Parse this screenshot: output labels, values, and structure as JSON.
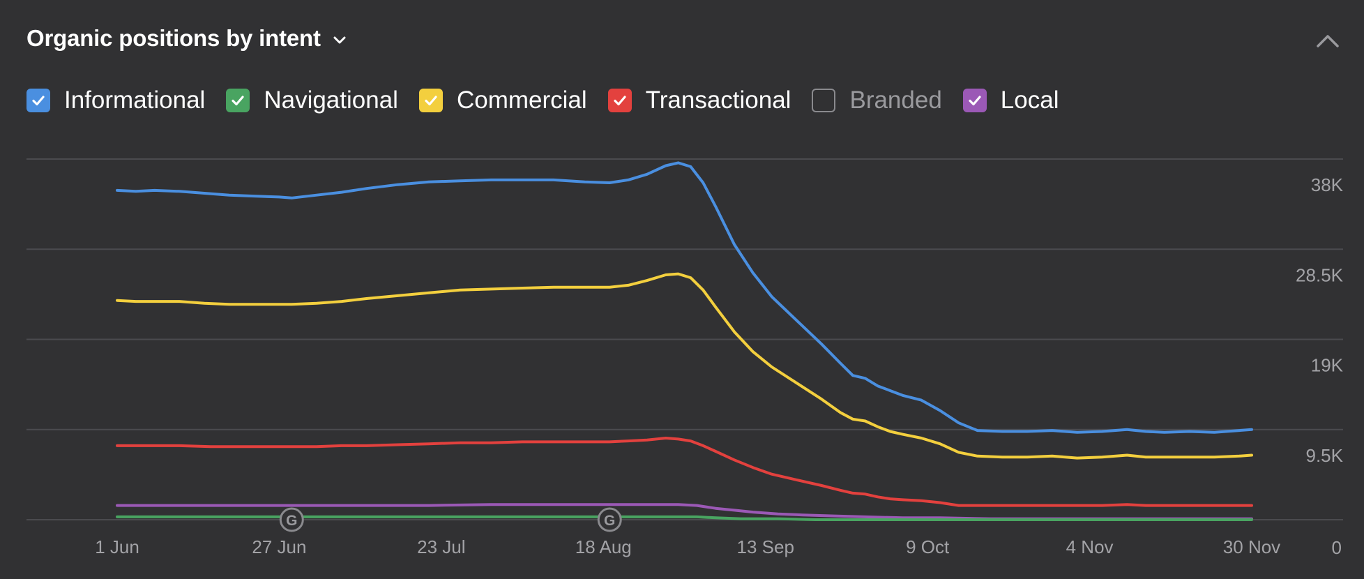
{
  "widget": {
    "title": "Organic positions by intent"
  },
  "legend": [
    {
      "label": "Informational",
      "color": "#4a8fe0",
      "checked": true
    },
    {
      "label": "Navigational",
      "color": "#49a461",
      "checked": true
    },
    {
      "label": "Commercial",
      "color": "#f3cf3e",
      "checked": true
    },
    {
      "label": "Transactional",
      "color": "#e3413e",
      "checked": true
    },
    {
      "label": "Branded",
      "color": "#8a8a8e",
      "checked": false
    },
    {
      "label": "Local",
      "color": "#9b59b6",
      "checked": true
    }
  ],
  "chart_data": {
    "type": "line",
    "title": "Organic positions by intent",
    "x_ticks": [
      "1 Jun",
      "27 Jun",
      "23 Jul",
      "18 Aug",
      "13 Sep",
      "9 Oct",
      "4 Nov",
      "30 Nov"
    ],
    "x_domain": [
      0,
      182
    ],
    "y_ticks": [
      {
        "value": 38000,
        "label": "38K"
      },
      {
        "value": 28500,
        "label": "28.5K"
      },
      {
        "value": 19000,
        "label": "19K"
      },
      {
        "value": 9500,
        "label": "9.5K"
      },
      {
        "value": 0,
        "label": "0"
      }
    ],
    "ylim": [
      0,
      38000
    ],
    "annotations": [
      {
        "day": 28,
        "label": "G"
      },
      {
        "day": 79,
        "label": "G"
      }
    ],
    "series": [
      {
        "name": "Informational",
        "color": "#4a8fe0",
        "points": [
          [
            0,
            34700
          ],
          [
            3,
            34600
          ],
          [
            6,
            34700
          ],
          [
            10,
            34600
          ],
          [
            14,
            34400
          ],
          [
            18,
            34200
          ],
          [
            22,
            34100
          ],
          [
            26,
            34000
          ],
          [
            28,
            33900
          ],
          [
            32,
            34200
          ],
          [
            36,
            34500
          ],
          [
            40,
            34900
          ],
          [
            45,
            35300
          ],
          [
            50,
            35600
          ],
          [
            55,
            35700
          ],
          [
            60,
            35800
          ],
          [
            65,
            35800
          ],
          [
            70,
            35800
          ],
          [
            75,
            35600
          ],
          [
            79,
            35500
          ],
          [
            82,
            35800
          ],
          [
            85,
            36400
          ],
          [
            88,
            37300
          ],
          [
            90,
            37600
          ],
          [
            92,
            37200
          ],
          [
            94,
            35500
          ],
          [
            96,
            33000
          ],
          [
            99,
            29000
          ],
          [
            102,
            26000
          ],
          [
            105,
            23500
          ],
          [
            109,
            21000
          ],
          [
            113,
            18500
          ],
          [
            116,
            16500
          ],
          [
            118,
            15200
          ],
          [
            120,
            14900
          ],
          [
            122,
            14100
          ],
          [
            124,
            13600
          ],
          [
            126,
            13100
          ],
          [
            129,
            12600
          ],
          [
            132,
            11500
          ],
          [
            135,
            10200
          ],
          [
            138,
            9400
          ],
          [
            142,
            9300
          ],
          [
            146,
            9300
          ],
          [
            150,
            9400
          ],
          [
            154,
            9200
          ],
          [
            158,
            9300
          ],
          [
            162,
            9500
          ],
          [
            165,
            9300
          ],
          [
            168,
            9200
          ],
          [
            172,
            9300
          ],
          [
            176,
            9200
          ],
          [
            180,
            9400
          ],
          [
            182,
            9500
          ]
        ]
      },
      {
        "name": "Commercial",
        "color": "#f3cf3e",
        "points": [
          [
            0,
            23100
          ],
          [
            3,
            23000
          ],
          [
            6,
            23000
          ],
          [
            10,
            23000
          ],
          [
            14,
            22800
          ],
          [
            18,
            22700
          ],
          [
            22,
            22700
          ],
          [
            26,
            22700
          ],
          [
            28,
            22700
          ],
          [
            32,
            22800
          ],
          [
            36,
            23000
          ],
          [
            40,
            23300
          ],
          [
            45,
            23600
          ],
          [
            50,
            23900
          ],
          [
            55,
            24200
          ],
          [
            60,
            24300
          ],
          [
            65,
            24400
          ],
          [
            70,
            24500
          ],
          [
            75,
            24500
          ],
          [
            79,
            24500
          ],
          [
            82,
            24700
          ],
          [
            85,
            25200
          ],
          [
            88,
            25800
          ],
          [
            90,
            25900
          ],
          [
            92,
            25500
          ],
          [
            94,
            24200
          ],
          [
            96,
            22400
          ],
          [
            99,
            19800
          ],
          [
            102,
            17700
          ],
          [
            105,
            16100
          ],
          [
            109,
            14400
          ],
          [
            113,
            12700
          ],
          [
            116,
            11300
          ],
          [
            118,
            10600
          ],
          [
            120,
            10400
          ],
          [
            122,
            9800
          ],
          [
            124,
            9300
          ],
          [
            126,
            9000
          ],
          [
            129,
            8600
          ],
          [
            132,
            8000
          ],
          [
            135,
            7100
          ],
          [
            138,
            6700
          ],
          [
            142,
            6600
          ],
          [
            146,
            6600
          ],
          [
            150,
            6700
          ],
          [
            154,
            6500
          ],
          [
            158,
            6600
          ],
          [
            162,
            6800
          ],
          [
            165,
            6600
          ],
          [
            168,
            6600
          ],
          [
            172,
            6600
          ],
          [
            176,
            6600
          ],
          [
            180,
            6700
          ],
          [
            182,
            6800
          ]
        ]
      },
      {
        "name": "Transactional",
        "color": "#e3413e",
        "points": [
          [
            0,
            7800
          ],
          [
            5,
            7800
          ],
          [
            10,
            7800
          ],
          [
            15,
            7700
          ],
          [
            20,
            7700
          ],
          [
            25,
            7700
          ],
          [
            28,
            7700
          ],
          [
            32,
            7700
          ],
          [
            36,
            7800
          ],
          [
            40,
            7800
          ],
          [
            45,
            7900
          ],
          [
            50,
            8000
          ],
          [
            55,
            8100
          ],
          [
            60,
            8100
          ],
          [
            65,
            8200
          ],
          [
            70,
            8200
          ],
          [
            75,
            8200
          ],
          [
            79,
            8200
          ],
          [
            82,
            8300
          ],
          [
            85,
            8400
          ],
          [
            88,
            8600
          ],
          [
            90,
            8500
          ],
          [
            92,
            8300
          ],
          [
            94,
            7800
          ],
          [
            96,
            7200
          ],
          [
            99,
            6300
          ],
          [
            102,
            5500
          ],
          [
            105,
            4800
          ],
          [
            109,
            4200
          ],
          [
            113,
            3600
          ],
          [
            116,
            3100
          ],
          [
            118,
            2800
          ],
          [
            120,
            2700
          ],
          [
            122,
            2400
          ],
          [
            124,
            2200
          ],
          [
            126,
            2100
          ],
          [
            129,
            2000
          ],
          [
            132,
            1800
          ],
          [
            135,
            1500
          ],
          [
            138,
            1500
          ],
          [
            142,
            1500
          ],
          [
            146,
            1500
          ],
          [
            150,
            1500
          ],
          [
            154,
            1500
          ],
          [
            158,
            1500
          ],
          [
            162,
            1600
          ],
          [
            165,
            1500
          ],
          [
            168,
            1500
          ],
          [
            172,
            1500
          ],
          [
            176,
            1500
          ],
          [
            180,
            1500
          ],
          [
            182,
            1500
          ]
        ]
      },
      {
        "name": "Local",
        "color": "#9b59b6",
        "points": [
          [
            0,
            1500
          ],
          [
            10,
            1500
          ],
          [
            20,
            1500
          ],
          [
            28,
            1500
          ],
          [
            40,
            1500
          ],
          [
            50,
            1500
          ],
          [
            60,
            1600
          ],
          [
            70,
            1600
          ],
          [
            79,
            1600
          ],
          [
            85,
            1600
          ],
          [
            90,
            1600
          ],
          [
            93,
            1500
          ],
          [
            96,
            1200
          ],
          [
            99,
            1000
          ],
          [
            102,
            800
          ],
          [
            106,
            600
          ],
          [
            110,
            500
          ],
          [
            115,
            400
          ],
          [
            120,
            300
          ],
          [
            126,
            200
          ],
          [
            132,
            200
          ],
          [
            140,
            100
          ],
          [
            150,
            100
          ],
          [
            160,
            100
          ],
          [
            170,
            100
          ],
          [
            182,
            100
          ]
        ]
      },
      {
        "name": "Navigational",
        "color": "#49a461",
        "points": [
          [
            0,
            300
          ],
          [
            10,
            300
          ],
          [
            20,
            300
          ],
          [
            28,
            300
          ],
          [
            40,
            300
          ],
          [
            50,
            300
          ],
          [
            60,
            300
          ],
          [
            70,
            300
          ],
          [
            79,
            300
          ],
          [
            85,
            300
          ],
          [
            90,
            300
          ],
          [
            93,
            300
          ],
          [
            96,
            200
          ],
          [
            100,
            100
          ],
          [
            106,
            100
          ],
          [
            112,
            0
          ],
          [
            120,
            0
          ],
          [
            130,
            0
          ],
          [
            140,
            0
          ],
          [
            150,
            0
          ],
          [
            160,
            0
          ],
          [
            170,
            0
          ],
          [
            182,
            0
          ]
        ]
      }
    ]
  }
}
